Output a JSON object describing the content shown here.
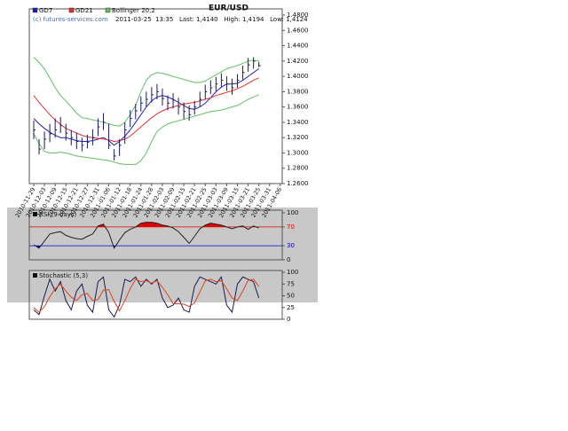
{
  "chart_data": [
    {
      "type": "ohlc",
      "title": "EUR/USD",
      "subtitle": "2011-03-25  13:35   Last: 1,4140   High: 1,4194   Low: 1,4124",
      "annotation": "(c) futures-services.com",
      "categories": [
        "2010-11-29",
        null,
        "2010-12-03",
        null,
        "2010-12-09",
        null,
        "2010-12-15",
        null,
        "2010-12-21",
        null,
        "2010-12-27",
        null,
        "2010-12-31",
        null,
        "2011-01-06",
        null,
        "2011-01-12",
        null,
        "2011-01-18",
        null,
        "2011-01-24",
        null,
        "2011-01-28",
        null,
        "2011-02-03",
        null,
        "2011-02-09",
        null,
        "2011-02-15",
        null,
        "2011-02-21",
        null,
        "2011-02-25",
        null,
        "2011-03-03",
        null,
        "2011-03-09",
        null,
        "2011-03-15",
        null,
        "2011-03-21",
        null,
        "2011-03-25",
        null,
        "2011-03-31",
        null,
        "2011-04-06"
      ],
      "high": [
        1.342,
        1.318,
        1.328,
        1.338,
        1.345,
        1.347,
        1.338,
        1.33,
        1.326,
        1.32,
        1.324,
        1.331,
        1.345,
        1.352,
        1.338,
        1.305,
        1.318,
        1.34,
        1.356,
        1.364,
        1.374,
        1.38,
        1.386,
        1.39,
        1.384,
        1.375,
        1.378,
        1.372,
        1.366,
        1.362,
        1.368,
        1.38,
        1.389,
        1.395,
        1.399,
        1.404,
        1.4,
        1.397,
        1.403,
        1.414,
        1.424,
        1.425,
        1.419,
        null,
        null,
        null,
        null
      ],
      "low": [
        1.318,
        1.298,
        1.305,
        1.314,
        1.32,
        1.326,
        1.316,
        1.31,
        1.305,
        1.302,
        1.306,
        1.31,
        1.322,
        1.33,
        1.305,
        1.29,
        1.296,
        1.312,
        1.334,
        1.344,
        1.354,
        1.36,
        1.366,
        1.37,
        1.362,
        1.356,
        1.358,
        1.35,
        1.344,
        1.342,
        1.35,
        1.36,
        1.37,
        1.377,
        1.381,
        1.386,
        1.381,
        1.376,
        1.385,
        1.396,
        1.406,
        1.41,
        1.412,
        null,
        null,
        null,
        null
      ],
      "close": [
        1.33,
        1.305,
        1.318,
        1.325,
        1.33,
        1.336,
        1.326,
        1.32,
        1.315,
        1.31,
        1.314,
        1.32,
        1.334,
        1.34,
        1.31,
        1.296,
        1.31,
        1.33,
        1.345,
        1.355,
        1.365,
        1.37,
        1.376,
        1.38,
        1.371,
        1.365,
        1.369,
        1.36,
        1.354,
        1.35,
        1.36,
        1.37,
        1.38,
        1.385,
        1.39,
        1.395,
        1.39,
        1.385,
        1.395,
        1.405,
        1.415,
        1.42,
        1.414,
        null,
        null,
        null,
        null
      ],
      "color": "#1a1a5a",
      "series": [
        {
          "name": "GD7",
          "color": "#2020b0",
          "values": [
            1.345,
            1.338,
            1.332,
            1.327,
            1.323,
            1.32,
            1.32,
            1.318,
            1.316,
            1.315,
            1.315,
            1.316,
            1.318,
            1.32,
            1.316,
            1.31,
            1.315,
            1.322,
            1.33,
            1.34,
            1.35,
            1.36,
            1.368,
            1.373,
            1.375,
            1.373,
            1.37,
            1.366,
            1.362,
            1.358,
            1.357,
            1.36,
            1.365,
            1.372,
            1.38,
            1.386,
            1.39,
            1.39,
            1.391,
            1.395,
            1.4,
            1.405,
            1.41,
            null,
            null,
            null,
            null
          ]
        },
        {
          "name": "GD21",
          "color": "#e03030",
          "values": [
            1.375,
            1.366,
            1.358,
            1.35,
            1.343,
            1.337,
            1.332,
            1.329,
            1.326,
            1.323,
            1.321,
            1.32,
            1.319,
            1.318,
            1.317,
            1.315,
            1.316,
            1.318,
            1.322,
            1.328,
            1.334,
            1.34,
            1.346,
            1.351,
            1.355,
            1.358,
            1.36,
            1.362,
            1.364,
            1.365,
            1.366,
            1.368,
            1.37,
            1.372,
            1.375,
            1.377,
            1.379,
            1.381,
            1.384,
            1.387,
            1.391,
            1.395,
            1.398,
            null,
            null,
            null,
            null
          ]
        },
        {
          "name": "Bollinger 20,2",
          "color": "#60c060",
          "upper": [
            1.425,
            1.418,
            1.41,
            1.398,
            1.385,
            1.375,
            1.368,
            1.36,
            1.352,
            1.346,
            1.345,
            1.343,
            1.342,
            1.34,
            1.338,
            1.336,
            1.335,
            1.34,
            1.35,
            1.362,
            1.38,
            1.395,
            1.402,
            1.405,
            1.404,
            1.402,
            1.4,
            1.398,
            1.396,
            1.394,
            1.392,
            1.392,
            1.394,
            1.398,
            1.402,
            1.406,
            1.41,
            1.412,
            1.414,
            1.417,
            1.42,
            1.421,
            1.42,
            null,
            null,
            null,
            null
          ],
          "lower": [
            1.325,
            1.312,
            1.302,
            1.3,
            1.3,
            1.301,
            1.3,
            1.298,
            1.296,
            1.295,
            1.294,
            1.293,
            1.292,
            1.291,
            1.29,
            1.288,
            1.286,
            1.285,
            1.285,
            1.285,
            1.29,
            1.3,
            1.315,
            1.328,
            1.334,
            1.338,
            1.34,
            1.342,
            1.344,
            1.346,
            1.348,
            1.35,
            1.352,
            1.354,
            1.355,
            1.356,
            1.358,
            1.36,
            1.362,
            1.366,
            1.37,
            1.373,
            1.376,
            null,
            null,
            null,
            null
          ]
        }
      ],
      "ylim": [
        1.26,
        1.48
      ],
      "yticks": [
        {
          "value": 1.48,
          "label": "1.4800"
        },
        {
          "value": 1.46,
          "label": "1.4600"
        },
        {
          "value": 1.44,
          "label": "1.4400"
        },
        {
          "value": 1.42,
          "label": "1.4200"
        },
        {
          "value": 1.4,
          "label": "1.4000"
        },
        {
          "value": 1.38,
          "label": "1.3800"
        },
        {
          "value": 1.36,
          "label": "1.3600"
        },
        {
          "value": 1.34,
          "label": "1.3400"
        },
        {
          "value": 1.32,
          "label": "1.3200"
        },
        {
          "value": 1.3,
          "label": "1.3000"
        },
        {
          "value": 1.28,
          "label": "1.2800"
        },
        {
          "value": 1.26,
          "label": "1.2600"
        }
      ]
    },
    {
      "type": "rsi",
      "title": "RSI (9 days)",
      "series": [
        {
          "name": "RSI",
          "color": "#222222",
          "values": [
            32,
            25,
            40,
            55,
            58,
            60,
            52,
            48,
            45,
            44,
            50,
            55,
            72,
            76,
            58,
            25,
            42,
            58,
            65,
            70,
            78,
            80,
            80,
            78,
            74,
            72,
            68,
            60,
            48,
            35,
            50,
            66,
            74,
            78,
            76,
            74,
            70,
            66,
            70,
            72,
            65,
            72,
            68,
            null,
            null,
            null,
            null
          ]
        }
      ],
      "levels": [
        {
          "value": 70,
          "color": "#e00000"
        },
        {
          "value": 30,
          "color": "#0000e0"
        }
      ],
      "ylim": [
        0,
        100
      ],
      "yticks": [
        100,
        70,
        30,
        0
      ]
    },
    {
      "type": "stochastic",
      "title": "Stochastic (5,3)",
      "series": [
        {
          "name": "%K",
          "color": "#1a1a50",
          "values": [
            20,
            10,
            50,
            85,
            60,
            80,
            40,
            20,
            60,
            75,
            30,
            15,
            80,
            90,
            20,
            5,
            30,
            85,
            80,
            90,
            70,
            85,
            75,
            85,
            45,
            25,
            30,
            45,
            20,
            15,
            70,
            90,
            85,
            80,
            75,
            90,
            30,
            15,
            75,
            90,
            85,
            80,
            45,
            null,
            null,
            null,
            null
          ]
        },
        {
          "name": "%D",
          "color": "#e04020",
          "values": [
            25,
            15,
            27,
            48,
            65,
            75,
            60,
            47,
            40,
            52,
            55,
            40,
            42,
            62,
            63,
            38,
            18,
            40,
            65,
            85,
            80,
            82,
            77,
            82,
            68,
            52,
            33,
            33,
            32,
            27,
            35,
            58,
            82,
            85,
            80,
            82,
            65,
            45,
            40,
            60,
            83,
            85,
            70,
            null,
            null,
            null,
            null
          ]
        }
      ],
      "ylim": [
        0,
        100
      ],
      "yticks": [
        100,
        75,
        50,
        25,
        0
      ]
    }
  ]
}
